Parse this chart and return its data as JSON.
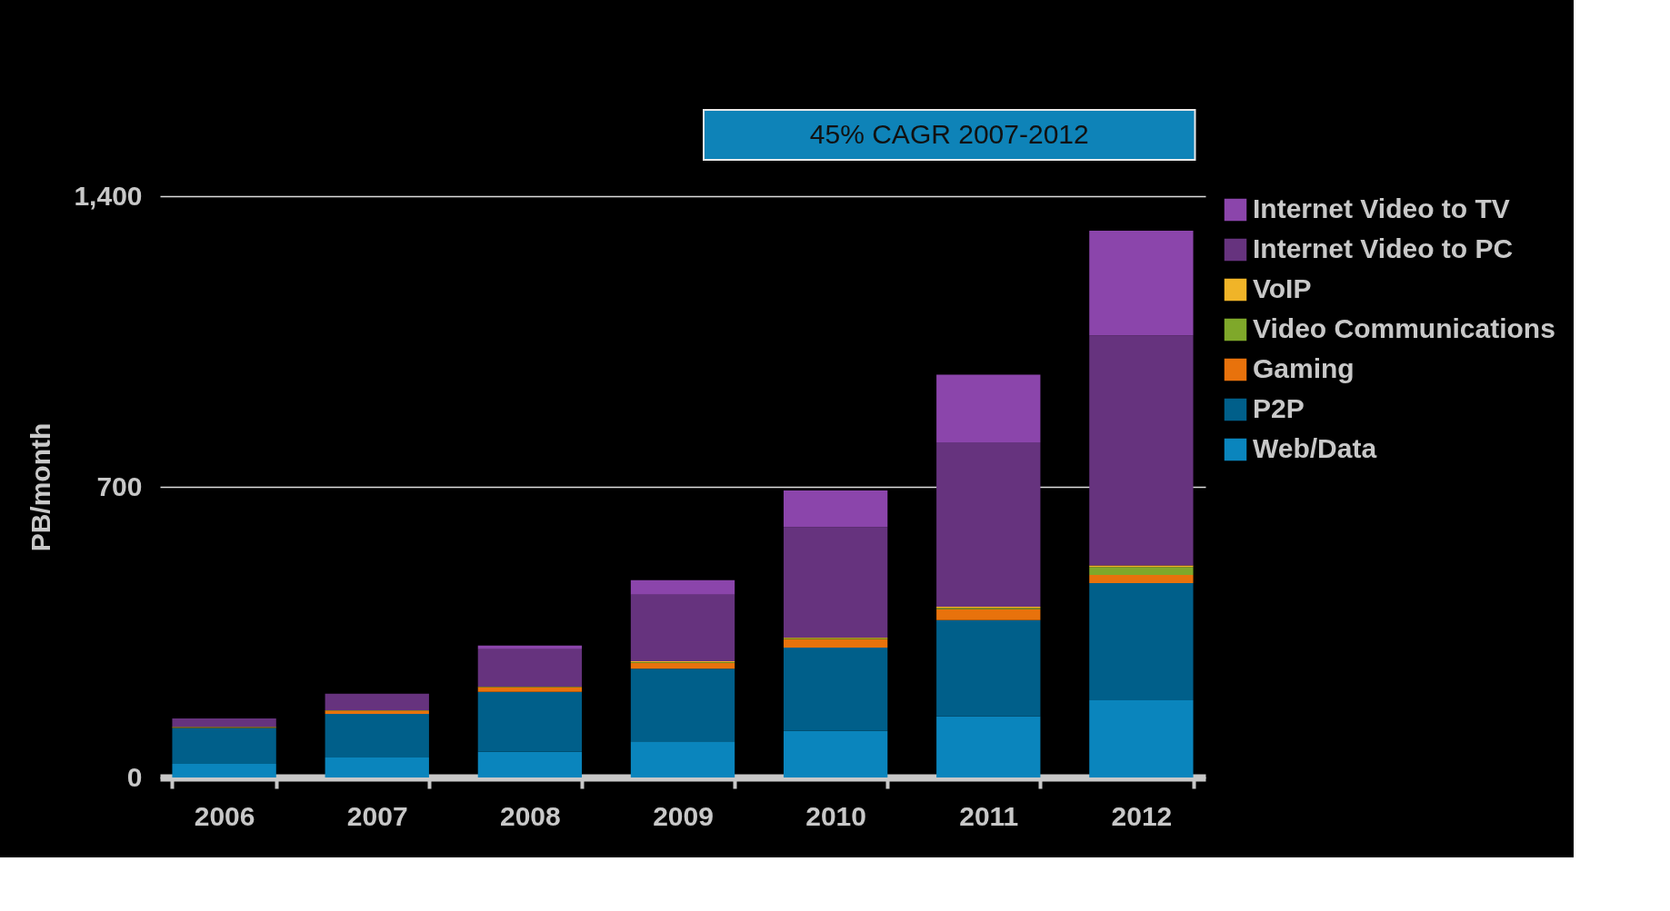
{
  "chart_data": {
    "type": "bar",
    "stacked": true,
    "ylabel": "PB/month",
    "annotations": [
      "45% CAGR 2007-2012"
    ],
    "categories": [
      "2006",
      "2007",
      "2008",
      "2009",
      "2010",
      "2011",
      "2012"
    ],
    "ylim": [
      0,
      1400
    ],
    "yticks": [
      0,
      700,
      {
        "value": 1400,
        "label": "1,400"
      }
    ],
    "grid": "y",
    "legend": "right",
    "series": [
      {
        "name": "Web/Data",
        "color": "#0a85bd",
        "values": [
          33,
          48,
          62,
          87,
          112,
          147,
          186
        ]
      },
      {
        "name": "P2P",
        "color": "#005f8a",
        "values": [
          86,
          105,
          144,
          175,
          201,
          232,
          282
        ]
      },
      {
        "name": "Gaming",
        "color": "#e8720c",
        "values": [
          1,
          7,
          11,
          14,
          20,
          26,
          20
        ]
      },
      {
        "name": "Video Communications",
        "color": "#7fa82a",
        "values": [
          1,
          1,
          1,
          2,
          2,
          3,
          19
        ]
      },
      {
        "name": "VoIP",
        "color": "#f0b428",
        "values": [
          1,
          1,
          1,
          2,
          2,
          3,
          4
        ]
      },
      {
        "name": "Internet Video to PC",
        "color": "#66337e",
        "values": [
          20,
          40,
          90,
          160,
          266,
          396,
          554
        ]
      },
      {
        "name": "Internet Video to TV",
        "color": "#8b45ab",
        "values": [
          0,
          0,
          9,
          35,
          88,
          163,
          252
        ]
      }
    ]
  }
}
